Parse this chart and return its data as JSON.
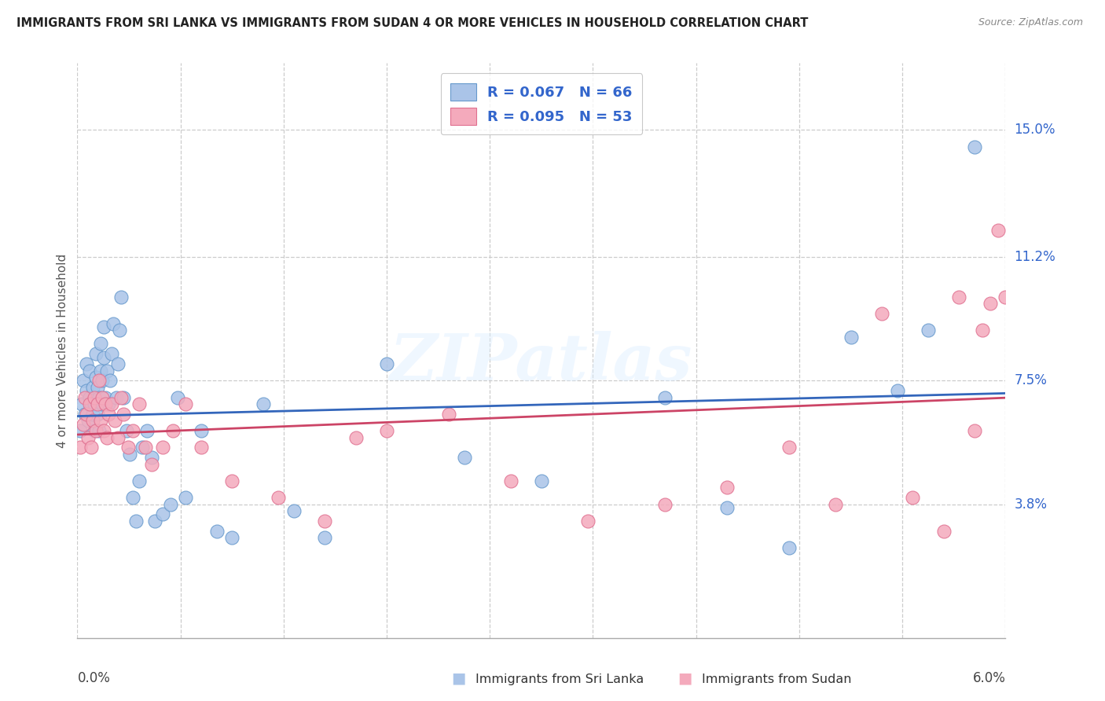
{
  "title": "IMMIGRANTS FROM SRI LANKA VS IMMIGRANTS FROM SUDAN 4 OR MORE VEHICLES IN HOUSEHOLD CORRELATION CHART",
  "source": "Source: ZipAtlas.com",
  "ylabel": "4 or more Vehicles in Household",
  "ytick_labels": [
    "15.0%",
    "11.2%",
    "7.5%",
    "3.8%"
  ],
  "ytick_values": [
    0.15,
    0.112,
    0.075,
    0.038
  ],
  "xlim": [
    0.0,
    0.06
  ],
  "ylim": [
    -0.002,
    0.17
  ],
  "xtick_positions": [
    0.0,
    0.00667,
    0.01333,
    0.02,
    0.02667,
    0.03333,
    0.04,
    0.04667,
    0.05333,
    0.06
  ],
  "sri_lanka_color": "#aac4e8",
  "sri_lanka_edge": "#6699cc",
  "sudan_color": "#f4aabc",
  "sudan_edge": "#e07090",
  "trend_sri_lanka_color": "#3366bb",
  "trend_sudan_color": "#cc4466",
  "sri_lanka_R": 0.067,
  "sri_lanka_N": 66,
  "sudan_R": 0.095,
  "sudan_N": 53,
  "watermark": "ZIPatlas",
  "sri_lanka_x": [
    0.0002,
    0.0003,
    0.0004,
    0.0005,
    0.0006,
    0.0006,
    0.0007,
    0.0008,
    0.0008,
    0.0009,
    0.001,
    0.001,
    0.0011,
    0.0011,
    0.0012,
    0.0012,
    0.0013,
    0.0013,
    0.0014,
    0.0014,
    0.0015,
    0.0015,
    0.0016,
    0.0016,
    0.0017,
    0.0017,
    0.0018,
    0.0019,
    0.002,
    0.0021,
    0.0022,
    0.0023,
    0.0025,
    0.0026,
    0.0027,
    0.0028,
    0.003,
    0.0032,
    0.0034,
    0.0036,
    0.0038,
    0.004,
    0.0042,
    0.0045,
    0.0048,
    0.005,
    0.0055,
    0.006,
    0.0065,
    0.007,
    0.008,
    0.009,
    0.01,
    0.012,
    0.014,
    0.016,
    0.02,
    0.025,
    0.03,
    0.038,
    0.042,
    0.046,
    0.05,
    0.053,
    0.055,
    0.058
  ],
  "sri_lanka_y": [
    0.06,
    0.068,
    0.075,
    0.065,
    0.072,
    0.08,
    0.063,
    0.07,
    0.078,
    0.068,
    0.065,
    0.073,
    0.06,
    0.068,
    0.076,
    0.083,
    0.065,
    0.073,
    0.06,
    0.07,
    0.078,
    0.086,
    0.068,
    0.075,
    0.082,
    0.091,
    0.07,
    0.078,
    0.068,
    0.075,
    0.083,
    0.092,
    0.07,
    0.08,
    0.09,
    0.1,
    0.07,
    0.06,
    0.053,
    0.04,
    0.033,
    0.045,
    0.055,
    0.06,
    0.052,
    0.033,
    0.035,
    0.038,
    0.07,
    0.04,
    0.06,
    0.03,
    0.028,
    0.068,
    0.036,
    0.028,
    0.08,
    0.052,
    0.045,
    0.07,
    0.037,
    0.025,
    0.088,
    0.072,
    0.09,
    0.145
  ],
  "sudan_x": [
    0.0002,
    0.0004,
    0.0005,
    0.0006,
    0.0007,
    0.0008,
    0.0009,
    0.001,
    0.0011,
    0.0012,
    0.0013,
    0.0014,
    0.0015,
    0.0016,
    0.0017,
    0.0018,
    0.0019,
    0.002,
    0.0022,
    0.0024,
    0.0026,
    0.0028,
    0.003,
    0.0033,
    0.0036,
    0.004,
    0.0044,
    0.0048,
    0.0055,
    0.0062,
    0.007,
    0.008,
    0.01,
    0.013,
    0.016,
    0.018,
    0.02,
    0.024,
    0.028,
    0.033,
    0.038,
    0.042,
    0.046,
    0.049,
    0.052,
    0.054,
    0.056,
    0.057,
    0.058,
    0.0585,
    0.059,
    0.0595,
    0.06
  ],
  "sudan_y": [
    0.055,
    0.062,
    0.07,
    0.065,
    0.058,
    0.068,
    0.055,
    0.063,
    0.07,
    0.06,
    0.068,
    0.075,
    0.063,
    0.07,
    0.06,
    0.068,
    0.058,
    0.065,
    0.068,
    0.063,
    0.058,
    0.07,
    0.065,
    0.055,
    0.06,
    0.068,
    0.055,
    0.05,
    0.055,
    0.06,
    0.068,
    0.055,
    0.045,
    0.04,
    0.033,
    0.058,
    0.06,
    0.065,
    0.045,
    0.033,
    0.038,
    0.043,
    0.055,
    0.038,
    0.095,
    0.04,
    0.03,
    0.1,
    0.06,
    0.09,
    0.098,
    0.12,
    0.1
  ]
}
